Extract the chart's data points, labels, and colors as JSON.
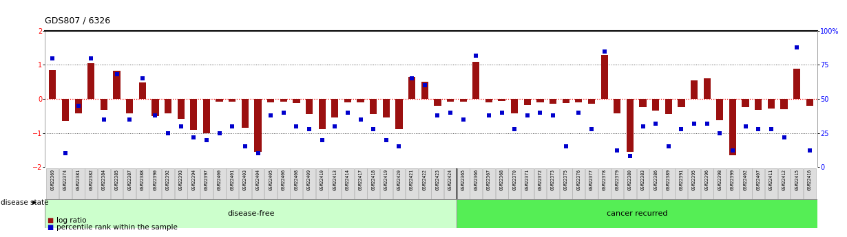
{
  "title": "GDS807 / 6326",
  "samples": [
    "GSM22369",
    "GSM22374",
    "GSM22381",
    "GSM22382",
    "GSM22384",
    "GSM22385",
    "GSM22387",
    "GSM22388",
    "GSM22390",
    "GSM22392",
    "GSM22393",
    "GSM22394",
    "GSM22397",
    "GSM22400",
    "GSM22401",
    "GSM22403",
    "GSM22404",
    "GSM22405",
    "GSM22406",
    "GSM22408",
    "GSM22409",
    "GSM22410",
    "GSM22413",
    "GSM22414",
    "GSM22417",
    "GSM22418",
    "GSM22419",
    "GSM22420",
    "GSM22421",
    "GSM22422",
    "GSM22423",
    "GSM22424",
    "GSM22365",
    "GSM22366",
    "GSM22367",
    "GSM22368",
    "GSM22370",
    "GSM22371",
    "GSM22372",
    "GSM22373",
    "GSM22375",
    "GSM22376",
    "GSM22377",
    "GSM22378",
    "GSM22379",
    "GSM22380",
    "GSM22383",
    "GSM22386",
    "GSM22389",
    "GSM22391",
    "GSM22395",
    "GSM22396",
    "GSM22398",
    "GSM22399",
    "GSM22402",
    "GSM22407",
    "GSM22411",
    "GSM22412",
    "GSM22415",
    "GSM22416"
  ],
  "log_ratio": [
    0.85,
    -0.65,
    -0.42,
    1.05,
    -0.32,
    0.82,
    -0.42,
    0.48,
    -0.5,
    -0.42,
    -0.58,
    -0.9,
    -1.0,
    -0.08,
    -0.08,
    -0.85,
    -1.55,
    -0.1,
    -0.08,
    -0.12,
    -0.45,
    -0.88,
    -0.55,
    -0.1,
    -0.1,
    -0.45,
    -0.55,
    -0.88,
    0.65,
    0.5,
    -0.2,
    -0.08,
    -0.08,
    1.08,
    -0.1,
    -0.05,
    -0.42,
    -0.18,
    -0.1,
    -0.14,
    -0.12,
    -0.1,
    -0.15,
    1.3,
    -0.42,
    -1.55,
    -0.25,
    -0.35,
    -0.45,
    -0.25,
    0.55,
    0.6,
    -0.62,
    -1.65,
    -0.25,
    -0.32,
    -0.28,
    -0.3,
    0.88,
    -0.2
  ],
  "percentile": [
    80,
    10,
    45,
    80,
    35,
    68,
    35,
    65,
    38,
    25,
    30,
    22,
    20,
    25,
    30,
    15,
    10,
    38,
    40,
    30,
    28,
    20,
    30,
    40,
    35,
    28,
    20,
    15,
    65,
    60,
    38,
    40,
    35,
    82,
    38,
    40,
    28,
    38,
    40,
    38,
    15,
    40,
    28,
    85,
    12,
    8,
    30,
    32,
    15,
    28,
    32,
    32,
    25,
    12,
    30,
    28,
    28,
    22,
    88,
    12
  ],
  "disease_free_count": 32,
  "bar_color": "#9B1010",
  "dot_color": "#0000CC",
  "disease_free_color": "#CCFFCC",
  "cancer_recurred_color": "#55EE55",
  "bg_color": "#FFFFFF",
  "ylim": [
    -2,
    2
  ],
  "y2lim": [
    0,
    100
  ],
  "yticks_left": [
    -2,
    -1,
    0,
    1,
    2
  ],
  "yticks_right": [
    0,
    25,
    50,
    75,
    100
  ]
}
